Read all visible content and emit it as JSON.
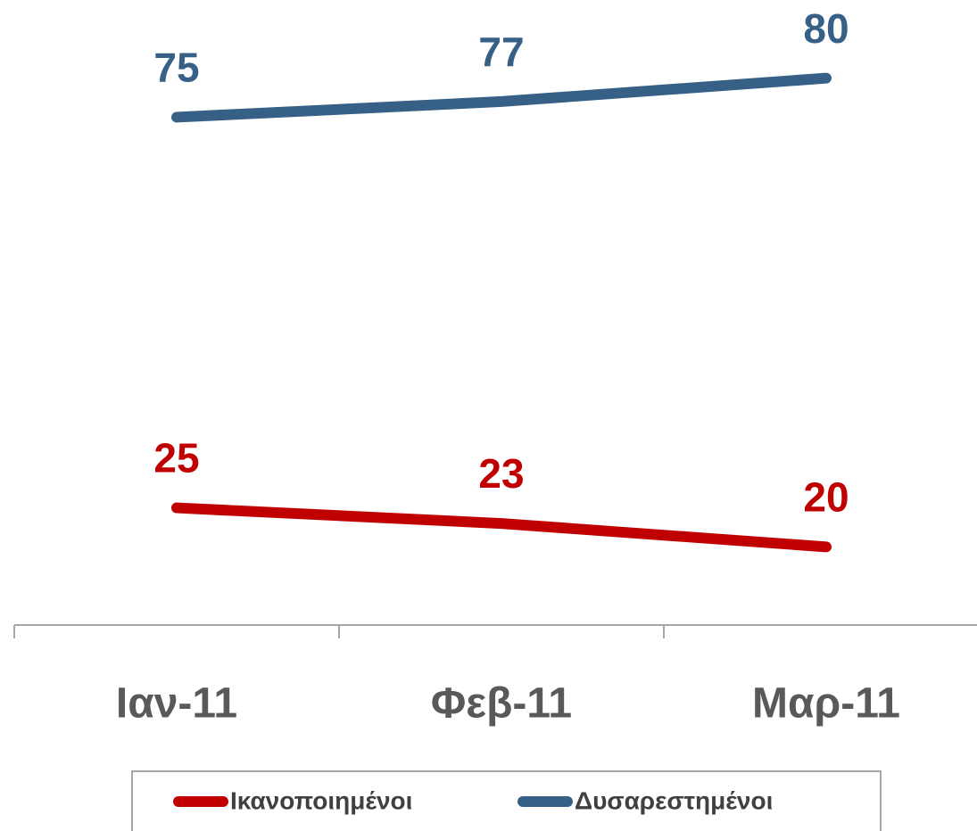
{
  "chart_data": {
    "type": "line",
    "categories": [
      "Ιαν-11",
      "Φεβ-11",
      "Μαρ-11"
    ],
    "series": [
      {
        "name": "Ικανοποιημένοι",
        "color": "#c00000",
        "values": [
          25,
          23,
          20
        ]
      },
      {
        "name": "Δυσαρεστημένοι",
        "color": "#376086",
        "values": [
          75,
          77,
          80
        ]
      }
    ],
    "ylim": [
      10,
      90
    ],
    "legend": "bottom"
  }
}
